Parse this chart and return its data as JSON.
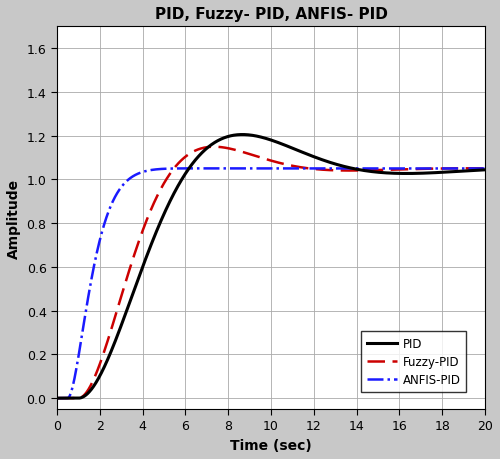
{
  "title": "PID, Fuzzy- PID, ANFIS- PID",
  "xlabel": "Time (sec)",
  "ylabel": "Amplitude",
  "xlim": [
    0,
    20
  ],
  "ylim": [
    -0.05,
    1.7
  ],
  "yticks": [
    0,
    0.2,
    0.4,
    0.6,
    0.8,
    1.0,
    1.2,
    1.4,
    1.6
  ],
  "xticks": [
    0,
    2,
    4,
    6,
    8,
    10,
    12,
    14,
    16,
    18,
    20
  ],
  "pid_color": "#000000",
  "fuzzy_color": "#cc0000",
  "anfis_color": "#1a1aff",
  "fig_facecolor": "#c8c8c8",
  "ax_facecolor": "#ffffff",
  "grid_color": "#aaaaaa",
  "steady_state": 1.05,
  "legend_labels": [
    "PID",
    "Fuzzy-PID",
    "ANFIS-PID"
  ]
}
